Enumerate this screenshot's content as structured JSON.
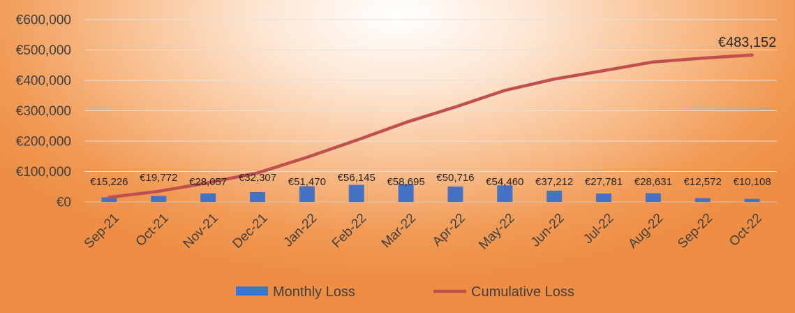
{
  "chart_data": {
    "type": "bar+line",
    "categories": [
      "Sep-21",
      "Oct-21",
      "Nov-21",
      "Dec-21",
      "Jan-22",
      "Feb-22",
      "Mar-22",
      "Apr-22",
      "May-22",
      "Jun-22",
      "Jul-22",
      "Aug-22",
      "Sep-22",
      "Oct-22"
    ],
    "series": [
      {
        "name": "Monthly Loss",
        "type": "bar",
        "color": "#4472c4",
        "values": [
          15226,
          19772,
          28057,
          32307,
          51470,
          56145,
          58695,
          50716,
          54460,
          37212,
          27781,
          28631,
          12572,
          10108
        ],
        "labels": [
          "€15,226",
          "€19,772",
          "€28,057",
          "€32,307",
          "€51,470",
          "€56,145",
          "€58,695",
          "€50,716",
          "€54,460",
          "€37,212",
          "€27,781",
          "€28,631",
          "€12,572",
          "€10,108"
        ]
      },
      {
        "name": "Cumulative Loss",
        "type": "line",
        "color": "#c0504d",
        "values": [
          15226,
          34998,
          63055,
          95362,
          146832,
          202977,
          261672,
          312388,
          366848,
          404060,
          431841,
          460472,
          473044,
          483152
        ],
        "end_label": "€483,152"
      }
    ],
    "y_axis": {
      "min": 0,
      "max": 600000,
      "step": 100000,
      "tick_labels": [
        "€0",
        "€100,000",
        "€200,000",
        "€300,000",
        "€400,000",
        "€500,000",
        "€600,000"
      ]
    },
    "grid": true,
    "legend_position": "bottom"
  }
}
